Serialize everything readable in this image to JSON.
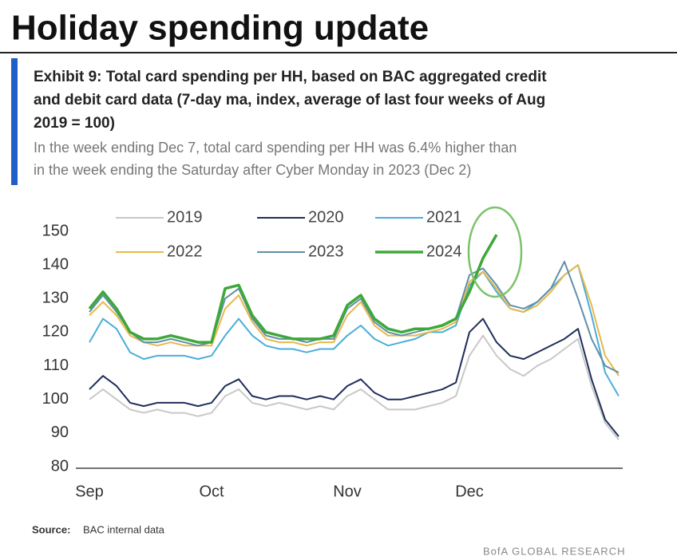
{
  "header": {
    "title": "Holiday spending update"
  },
  "chart_data": {
    "type": "line",
    "title": [
      "Exhibit 9: Total card spending per HH, based on BAC aggregated credit",
      "and debit card data (7-day ma, index, average of last four weeks of Aug",
      "2019 = 100)"
    ],
    "subtitle": [
      "In the week ending Dec 7, total card spending per HH was 6.4% higher than",
      "in the week ending the Saturday after Cyber Monday in 2023 (Dec 2)"
    ],
    "categories": [
      "Sep",
      null,
      null,
      null,
      null,
      null,
      null,
      null,
      null,
      "Oct",
      null,
      null,
      null,
      null,
      null,
      null,
      null,
      null,
      null,
      "Nov",
      null,
      null,
      null,
      null,
      null,
      null,
      null,
      null,
      "Dec",
      null,
      null,
      null,
      null,
      null,
      null,
      null,
      null,
      null,
      null,
      null
    ],
    "ylim": [
      80,
      150
    ],
    "yticks": [
      80,
      90,
      100,
      110,
      120,
      130,
      140,
      150
    ],
    "grid": false,
    "series": [
      {
        "name": "2019",
        "color": "#c8c8c8",
        "values": [
          100,
          103,
          100,
          97,
          96,
          97,
          96,
          96,
          95,
          96,
          101,
          103,
          99,
          98,
          99,
          98,
          97,
          98,
          97,
          101,
          103,
          100,
          97,
          97,
          97,
          98,
          99,
          101,
          113,
          119,
          113,
          109,
          107,
          110,
          112,
          115,
          118,
          104,
          93,
          88
        ]
      },
      {
        "name": "2020",
        "color": "#1f2d5c",
        "values": [
          103,
          107,
          104,
          99,
          98,
          99,
          99,
          99,
          98,
          99,
          104,
          106,
          101,
          100,
          101,
          101,
          100,
          101,
          100,
          104,
          106,
          102,
          100,
          100,
          101,
          102,
          103,
          105,
          120,
          124,
          117,
          113,
          112,
          114,
          116,
          118,
          121,
          106,
          94,
          89
        ]
      },
      {
        "name": "2021",
        "color": "#4aaed8",
        "values": [
          117,
          124,
          121,
          114,
          112,
          113,
          113,
          113,
          112,
          113,
          119,
          124,
          119,
          116,
          115,
          115,
          114,
          115,
          115,
          119,
          122,
          118,
          116,
          117,
          118,
          120,
          120,
          122,
          134,
          138,
          132,
          127,
          126,
          129,
          133,
          137,
          140,
          125,
          108,
          101
        ]
      },
      {
        "name": "2022",
        "color": "#e8b84a",
        "values": [
          125,
          129,
          125,
          119,
          117,
          116,
          117,
          116,
          116,
          116,
          127,
          131,
          123,
          118,
          117,
          117,
          116,
          117,
          117,
          125,
          129,
          122,
          119,
          119,
          119,
          120,
          121,
          123,
          135,
          138,
          133,
          127,
          126,
          128,
          132,
          137,
          140,
          128,
          113,
          107
        ]
      },
      {
        "name": "2023",
        "color": "#5f8fa8",
        "values": [
          126,
          131,
          126,
          120,
          117,
          117,
          118,
          117,
          116,
          117,
          130,
          133,
          124,
          119,
          118,
          118,
          117,
          118,
          118,
          127,
          130,
          123,
          120,
          119,
          120,
          121,
          122,
          124,
          137,
          139,
          134,
          128,
          127,
          129,
          133,
          141,
          130,
          118,
          110,
          108
        ]
      },
      {
        "name": "2024",
        "color": "#3ea83a",
        "values": [
          127,
          132,
          127,
          120,
          118,
          118,
          119,
          118,
          117,
          117,
          133,
          134,
          125,
          120,
          119,
          118,
          118,
          118,
          119,
          128,
          131,
          124,
          121,
          120,
          121,
          121,
          122,
          124,
          132,
          142,
          149,
          null,
          null,
          null,
          null,
          null,
          null,
          null,
          null,
          null
        ]
      }
    ]
  },
  "source": {
    "label": "Source:",
    "text": "BAC internal data"
  },
  "footer": "BofA GLOBAL RESEARCH"
}
